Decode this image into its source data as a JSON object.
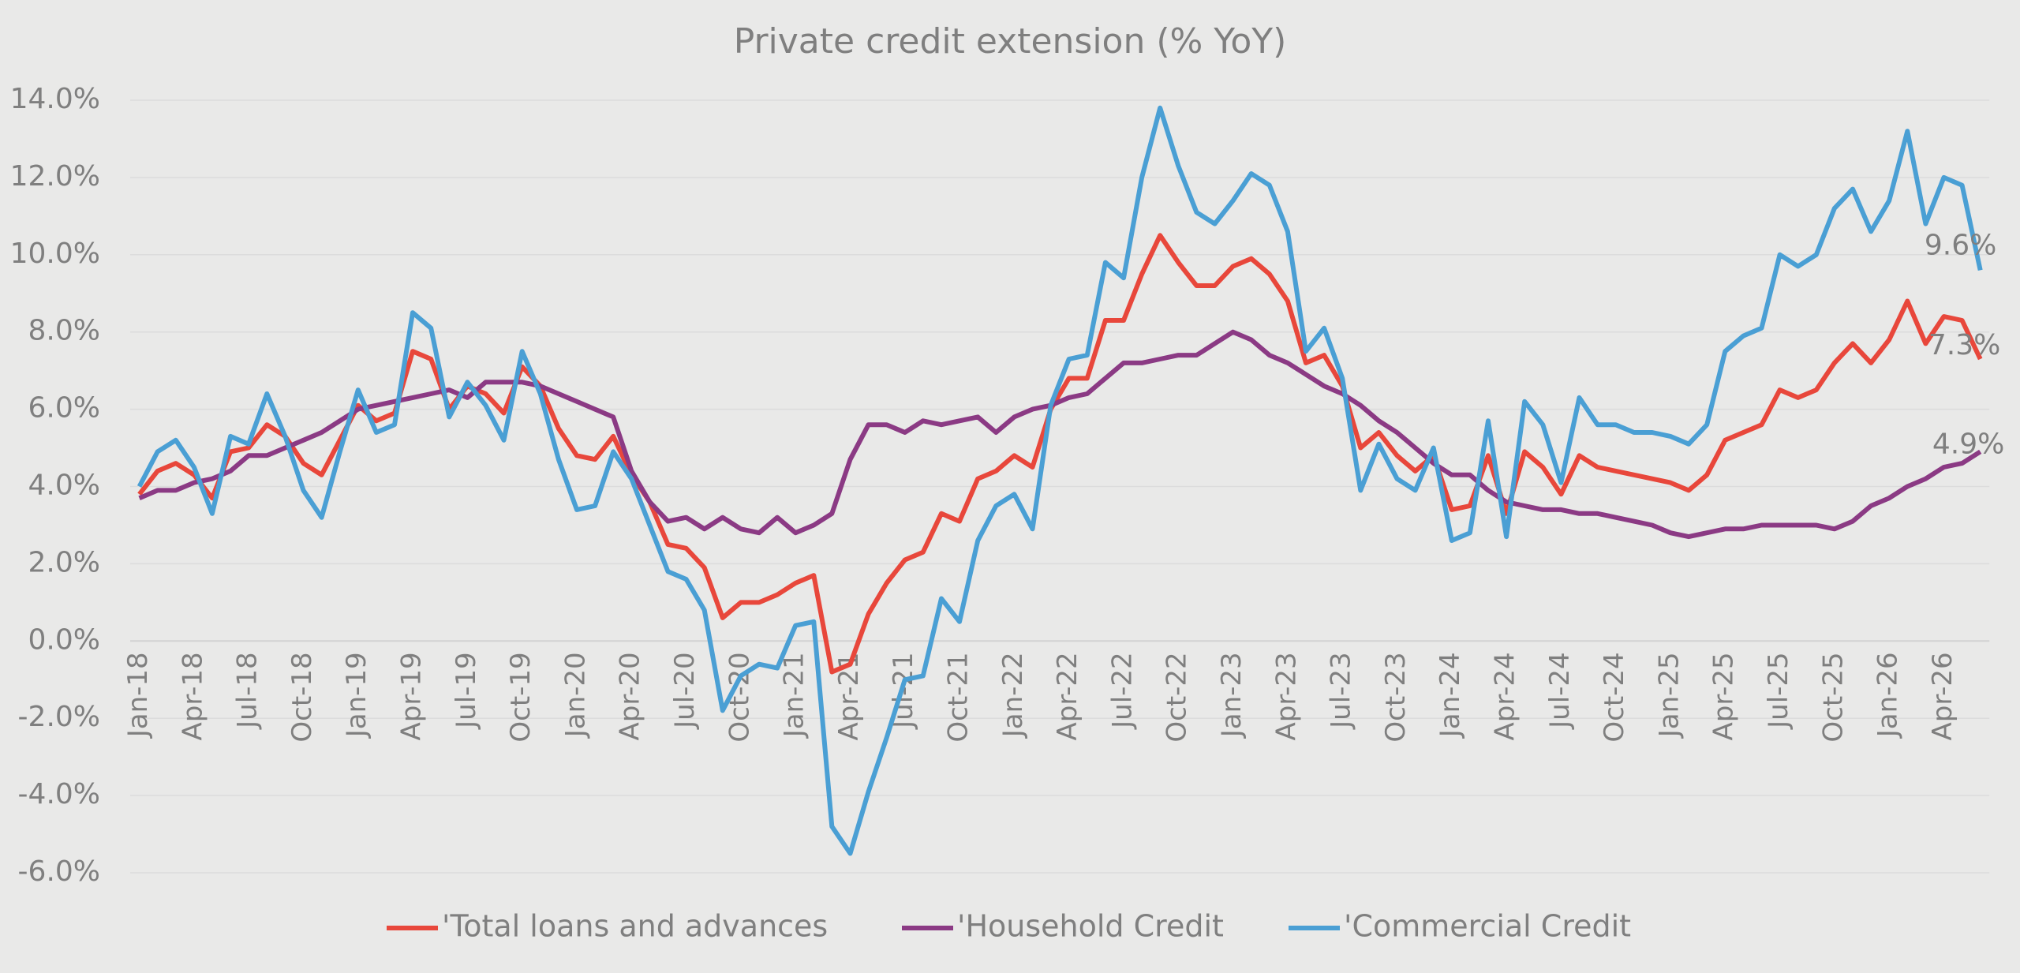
{
  "chart_data": {
    "type": "line",
    "title": "Private credit extension (% YoY)",
    "categories": [
      "Jan-18",
      null,
      null,
      "Apr-18",
      null,
      null,
      "Jul-18",
      null,
      null,
      "Oct-18",
      null,
      null,
      "Jan-19",
      null,
      null,
      "Apr-19",
      null,
      null,
      "Jul-19",
      null,
      null,
      "Oct-19",
      null,
      null,
      "Jan-20",
      null,
      null,
      "Apr-20",
      null,
      null,
      "Jul-20",
      null,
      null,
      "Oct-20",
      null,
      null,
      "Jan-21",
      null,
      null,
      "Apr-21",
      null,
      null,
      "Jul-21",
      null,
      null,
      "Oct-21",
      null,
      null,
      "Jan-22",
      null,
      null,
      "Apr-22",
      null,
      null,
      "Jul-22",
      null,
      null,
      "Oct-22",
      null,
      null,
      "Jan-23",
      null,
      null,
      "Apr-23",
      null,
      null,
      "Jul-23",
      null,
      null,
      "Oct-23",
      null,
      null,
      "Jan-24",
      null,
      null,
      "Apr-24",
      null,
      null,
      "Jul-24",
      null,
      null,
      "Oct-24",
      null,
      null,
      "Jan-25",
      null,
      null,
      "Apr-25",
      null,
      null,
      "Jul-25",
      null,
      null,
      "Oct-25",
      null,
      null,
      "Jan-26",
      null,
      null,
      "Apr-26",
      null,
      null
    ],
    "series": [
      {
        "name": "'Total loans and advances",
        "color": "#e8473b",
        "values": [
          3.8,
          4.4,
          4.6,
          4.3,
          3.7,
          4.9,
          5.0,
          5.6,
          5.3,
          4.6,
          4.3,
          5.2,
          6.1,
          5.7,
          5.9,
          7.5,
          7.3,
          6.0,
          6.6,
          6.4,
          5.9,
          7.1,
          6.6,
          5.5,
          4.8,
          4.7,
          5.3,
          4.3,
          3.6,
          2.5,
          2.4,
          1.9,
          0.6,
          1.0,
          1.0,
          1.2,
          1.5,
          1.7,
          -0.8,
          -0.6,
          0.7,
          1.5,
          2.1,
          2.3,
          3.3,
          3.1,
          4.2,
          4.4,
          4.8,
          4.5,
          6.0,
          6.8,
          6.8,
          8.3,
          8.3,
          9.5,
          10.5,
          9.8,
          9.2,
          9.2,
          9.7,
          9.9,
          9.5,
          8.8,
          7.2,
          7.4,
          6.6,
          5.0,
          5.4,
          4.8,
          4.4,
          4.8,
          3.4,
          3.5,
          4.8,
          3.3,
          4.9,
          4.5,
          3.8,
          4.8,
          4.5,
          4.4,
          4.3,
          4.2,
          4.1,
          3.9,
          4.3,
          5.2,
          5.4,
          5.6,
          6.5,
          6.3,
          6.5,
          7.2,
          7.7,
          7.2,
          7.8,
          8.8,
          7.7,
          8.4,
          8.3,
          7.3
        ],
        "value_labels": {
          "101": "7.3%"
        }
      },
      {
        "name": "'Household Credit",
        "color": "#8b3a84",
        "values": [
          3.7,
          3.9,
          3.9,
          4.1,
          4.2,
          4.4,
          4.8,
          4.8,
          5.0,
          5.2,
          5.4,
          5.7,
          6.0,
          6.1,
          6.2,
          6.3,
          6.4,
          6.5,
          6.3,
          6.7,
          6.7,
          6.7,
          6.6,
          6.4,
          6.2,
          6.0,
          5.8,
          4.4,
          3.6,
          3.1,
          3.2,
          2.9,
          3.2,
          2.9,
          2.8,
          3.2,
          2.8,
          3.0,
          3.3,
          4.7,
          5.6,
          5.6,
          5.4,
          5.7,
          5.6,
          5.7,
          5.8,
          5.4,
          5.8,
          6.0,
          6.1,
          6.3,
          6.4,
          6.8,
          7.2,
          7.2,
          7.3,
          7.4,
          7.4,
          7.7,
          8.0,
          7.8,
          7.4,
          7.2,
          6.9,
          6.6,
          6.4,
          6.1,
          5.7,
          5.4,
          5.0,
          4.6,
          4.3,
          4.3,
          3.9,
          3.6,
          3.5,
          3.4,
          3.4,
          3.3,
          3.3,
          3.2,
          3.1,
          3.0,
          2.8,
          2.7,
          2.8,
          2.9,
          2.9,
          3.0,
          3.0,
          3.0,
          3.0,
          2.9,
          3.1,
          3.5,
          3.7,
          4.0,
          4.2,
          4.5,
          4.6,
          4.9
        ],
        "value_labels": {
          "101": "4.9%"
        }
      },
      {
        "name": "'Commercial Credit",
        "color": "#4a9fd4",
        "values": [
          4.0,
          4.9,
          5.2,
          4.5,
          3.3,
          5.3,
          5.1,
          6.4,
          5.3,
          3.9,
          3.2,
          4.9,
          6.5,
          5.4,
          5.6,
          8.5,
          8.1,
          5.8,
          6.7,
          6.1,
          5.2,
          7.5,
          6.4,
          4.7,
          3.4,
          3.5,
          4.9,
          4.2,
          3.0,
          1.8,
          1.6,
          0.8,
          -1.8,
          -0.9,
          -0.6,
          -0.7,
          0.4,
          0.5,
          -4.8,
          -5.5,
          -3.9,
          -2.5,
          -1.0,
          -0.9,
          1.1,
          0.5,
          2.6,
          3.5,
          3.8,
          2.9,
          6.1,
          7.3,
          7.4,
          9.8,
          9.4,
          12.0,
          13.8,
          12.3,
          11.1,
          10.8,
          11.4,
          12.1,
          11.8,
          10.6,
          7.5,
          8.1,
          6.8,
          3.9,
          5.1,
          4.2,
          3.9,
          5.0,
          2.6,
          2.8,
          5.7,
          2.7,
          6.2,
          5.6,
          4.1,
          6.3,
          5.6,
          5.6,
          5.4,
          5.4,
          5.3,
          5.1,
          5.6,
          7.5,
          7.9,
          8.1,
          10.0,
          9.7,
          10.0,
          11.2,
          11.7,
          10.6,
          11.4,
          13.2,
          10.8,
          12.0,
          11.8,
          9.6
        ],
        "value_labels": {
          "101": "9.6%"
        }
      }
    ],
    "ylim": [
      -6,
      14
    ],
    "yticks": [
      {
        "value": -6,
        "label": "-6.0%"
      },
      {
        "value": -4,
        "label": "-4.0%"
      },
      {
        "value": -2,
        "label": "-2.0%"
      },
      {
        "value": 0,
        "label": "0.0%"
      },
      {
        "value": 2,
        "label": "2.0%"
      },
      {
        "value": 4,
        "label": "4.0%"
      },
      {
        "value": 6,
        "label": "6.0%"
      },
      {
        "value": 8,
        "label": "8.0%"
      },
      {
        "value": 10,
        "label": "10.0%"
      },
      {
        "value": 12,
        "label": "12.0%"
      },
      {
        "value": 14,
        "label": "14.0%"
      }
    ],
    "grid": true,
    "legend": "bottom"
  }
}
